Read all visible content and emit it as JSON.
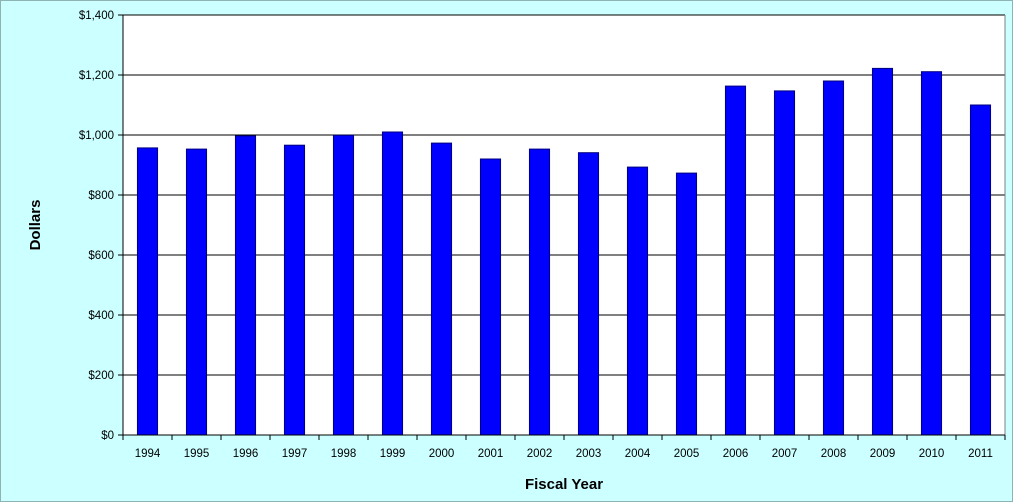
{
  "chart_data": {
    "type": "bar",
    "title": "",
    "xlabel": "Fiscal Year",
    "ylabel": "Dollars",
    "categories": [
      "1994",
      "1995",
      "1996",
      "1997",
      "1998",
      "1999",
      "2000",
      "2001",
      "2002",
      "2003",
      "2004",
      "2005",
      "2006",
      "2007",
      "2008",
      "2009",
      "2010",
      "2011"
    ],
    "values": [
      957,
      953,
      997,
      966,
      999,
      1010,
      973,
      920,
      953,
      941,
      893,
      873,
      1163,
      1147,
      1180,
      1222,
      1211,
      1100
    ],
    "ylim": [
      0,
      1400
    ],
    "yticks": [
      0,
      200,
      400,
      600,
      800,
      1000,
      1200,
      1400
    ],
    "ytick_labels": [
      "$0",
      "$200",
      "$400",
      "$600",
      "$800",
      "$1,000",
      "$1,200",
      "$1,400"
    ],
    "grid": true,
    "legend": "none",
    "colors": {
      "bar_fill": "#0000ff",
      "bar_stroke": "#000080",
      "plot_background": "#ffffff",
      "chart_background": "#ccffff",
      "gridline": "#000000"
    }
  }
}
